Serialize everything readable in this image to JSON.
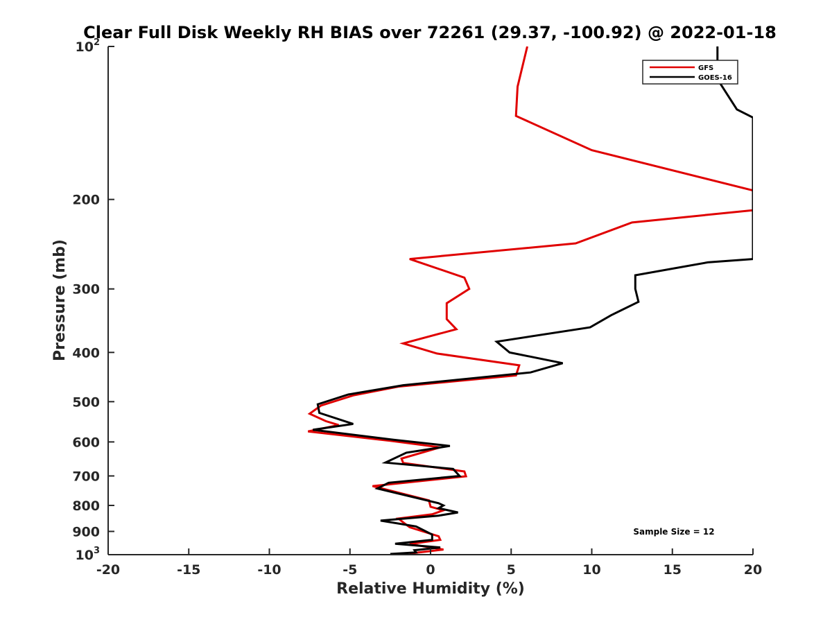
{
  "chart_data": {
    "type": "line",
    "title": "Clear Full Disk Weekly RH BIAS over 72261 (29.37, -100.92) @ 2022-01-18",
    "xlabel": "Relative Humidity (%)",
    "ylabel": "Pressure (mb)",
    "xlim": [
      -20,
      20
    ],
    "ylim": [
      100,
      1000
    ],
    "yscale": "log",
    "y_reversed": true,
    "grid": false,
    "legend_position": "top-right",
    "x_ticks": [
      "-20",
      "-15",
      "-10",
      "-5",
      "0",
      "5",
      "10",
      "15",
      "20"
    ],
    "y_ticks": [
      {
        "value": 100,
        "base": "10",
        "exp": "2"
      },
      {
        "value": 200,
        "base": "200",
        "exp": ""
      },
      {
        "value": 300,
        "base": "300",
        "exp": ""
      },
      {
        "value": 400,
        "base": "400",
        "exp": ""
      },
      {
        "value": 500,
        "base": "500",
        "exp": ""
      },
      {
        "value": 600,
        "base": "600",
        "exp": ""
      },
      {
        "value": 700,
        "base": "700",
        "exp": ""
      },
      {
        "value": 800,
        "base": "800",
        "exp": ""
      },
      {
        "value": 900,
        "base": "900",
        "exp": ""
      },
      {
        "value": 1000,
        "base": "10",
        "exp": "3"
      }
    ],
    "series": [
      {
        "name": "GFS",
        "color": "#e00000",
        "points": [
          [
            6.0,
            100
          ],
          [
            5.4,
            120
          ],
          [
            5.3,
            137
          ],
          [
            10.0,
            160
          ],
          [
            20.0,
            192
          ],
          [
            20.0,
            210
          ],
          [
            12.5,
            222
          ],
          [
            9.0,
            244
          ],
          [
            -1.3,
            262
          ],
          [
            2.1,
            285
          ],
          [
            2.4,
            300
          ],
          [
            1.0,
            320
          ],
          [
            1.0,
            344
          ],
          [
            1.6,
            360
          ],
          [
            -1.7,
            384
          ],
          [
            0.4,
            402
          ],
          [
            5.5,
            424
          ],
          [
            5.3,
            444
          ],
          [
            -2.0,
            467
          ],
          [
            -4.8,
            486
          ],
          [
            -6.8,
            509
          ],
          [
            -7.5,
            528
          ],
          [
            -6.5,
            546
          ],
          [
            -5.7,
            556
          ],
          [
            -7.6,
            572
          ],
          [
            -2.5,
            597
          ],
          [
            0.6,
            615
          ],
          [
            -1.8,
            647
          ],
          [
            -1.7,
            660
          ],
          [
            2.1,
            686
          ],
          [
            2.2,
            701
          ],
          [
            -3.6,
            733
          ],
          [
            -0.1,
            782
          ],
          [
            0.0,
            805
          ],
          [
            0.8,
            818
          ],
          [
            0.1,
            833
          ],
          [
            -2.0,
            849
          ],
          [
            -1.3,
            883
          ],
          [
            0.5,
            920
          ],
          [
            0.6,
            935
          ],
          [
            -1.3,
            953
          ],
          [
            0.8,
            977
          ],
          [
            -1.3,
            995
          ]
        ]
      },
      {
        "name": "GOES-16",
        "color": "#000000",
        "points": [
          [
            17.8,
            100
          ],
          [
            17.8,
            116
          ],
          [
            19.0,
            133
          ],
          [
            20.0,
            138
          ],
          [
            20.0,
            262
          ],
          [
            17.2,
            266
          ],
          [
            12.7,
            282
          ],
          [
            12.7,
            300
          ],
          [
            12.9,
            318
          ],
          [
            11.2,
            338
          ],
          [
            9.9,
            357
          ],
          [
            4.1,
            381
          ],
          [
            4.9,
            400
          ],
          [
            8.2,
            420
          ],
          [
            6.2,
            438
          ],
          [
            -1.7,
            464
          ],
          [
            -5.1,
            484
          ],
          [
            -7.0,
            506
          ],
          [
            -6.9,
            526
          ],
          [
            -4.8,
            553
          ],
          [
            -7.3,
            568
          ],
          [
            -2.3,
            594
          ],
          [
            1.2,
            611
          ],
          [
            -1.5,
            630
          ],
          [
            -2.8,
            659
          ],
          [
            1.4,
            678
          ],
          [
            1.8,
            700
          ],
          [
            -2.6,
            722
          ],
          [
            -3.3,
            741
          ],
          [
            0.5,
            792
          ],
          [
            0.8,
            800
          ],
          [
            0.5,
            810
          ],
          [
            1.7,
            826
          ],
          [
            0.5,
            838
          ],
          [
            -3.1,
            857
          ],
          [
            -0.9,
            880
          ],
          [
            0.1,
            913
          ],
          [
            0.1,
            935
          ],
          [
            -2.2,
            952
          ],
          [
            0.6,
            968
          ],
          [
            -1.0,
            980
          ],
          [
            -0.9,
            990
          ],
          [
            -2.5,
            997
          ]
        ]
      }
    ],
    "annotation": "Sample Size = 12"
  }
}
